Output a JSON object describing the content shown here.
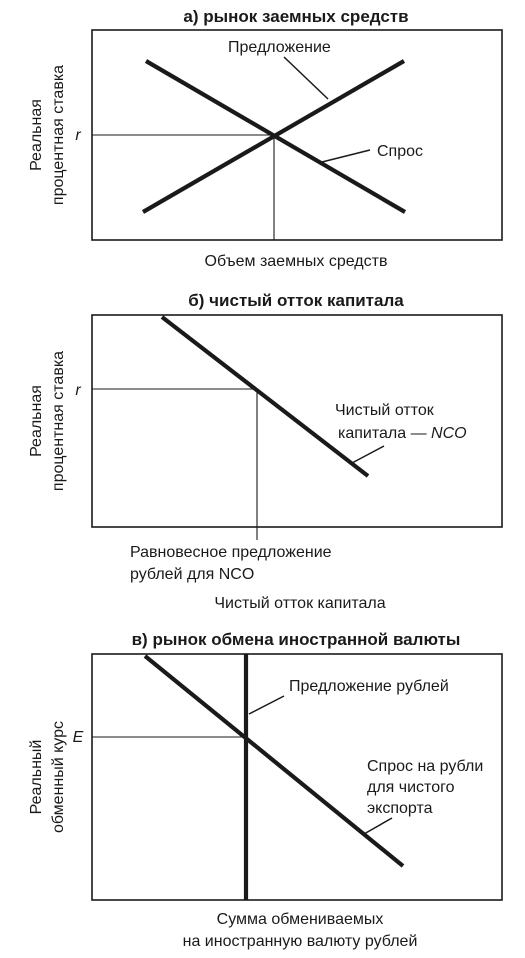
{
  "panel_a": {
    "title": "а) рынок заемных средств",
    "y_label_line1": "Реальная",
    "y_label_line2": "процентная ставка",
    "x_label": "Объем заемных средств",
    "rate_label": "r",
    "supply_label": "Предложение",
    "demand_label": "Спрос"
  },
  "panel_b": {
    "title": "б) чистый отток капитала",
    "y_label_line1": "Реальная",
    "y_label_line2": "процентная ставка",
    "x_label": "Чистый отток капитала",
    "rate_label": "r",
    "nco_label_line1": "Чистый отток",
    "nco_label_line2_text": "капитала — ",
    "nco_label_line2_italic": "NCO",
    "equilibrium_label_line1": "Равновесное предложение",
    "equilibrium_label_line2": "рублей для NCO"
  },
  "panel_c": {
    "title": "в) рынок обмена иностранной валюты",
    "y_label_line1": "Реальный",
    "y_label_line2": "обменный курс",
    "x_label_line1": "Сумма обмениваемых",
    "x_label_line2": "на иностранную валюту рублей",
    "rate_label": "E",
    "supply_label": "Предложение рублей",
    "demand_label_line1": "Спрос на рубли",
    "demand_label_line2": "для чистого",
    "demand_label_line3": "экспорта"
  }
}
